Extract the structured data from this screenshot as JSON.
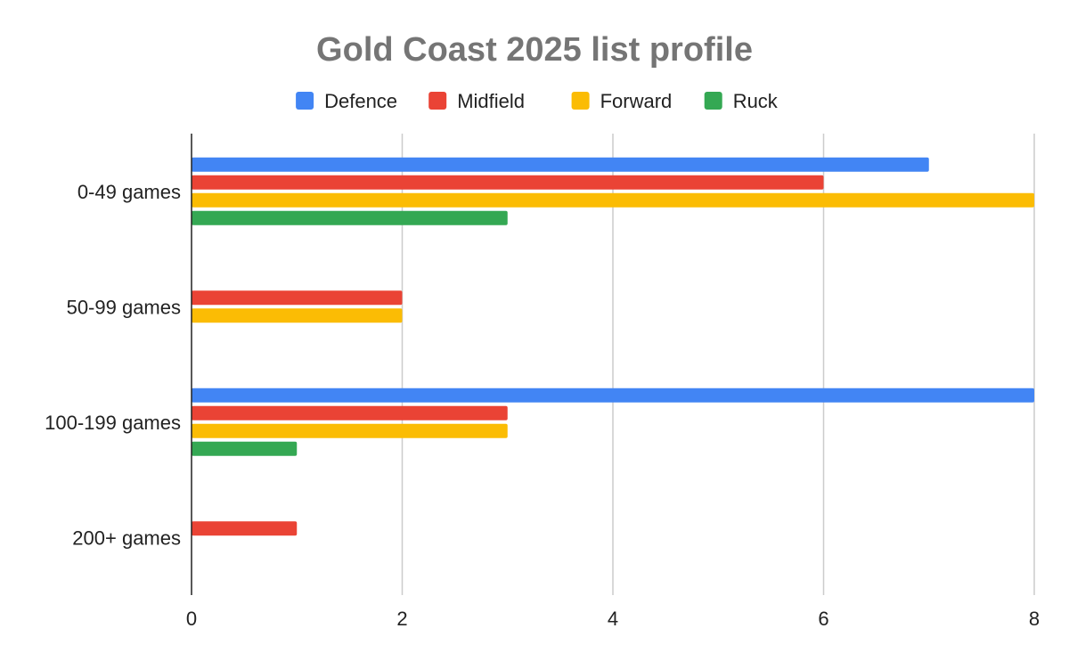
{
  "chart_data": {
    "type": "bar",
    "orientation": "horizontal",
    "title": "Gold Coast 2025 list profile",
    "categories": [
      "0-49 games",
      "50-99 games",
      "100-199 games",
      "200+ games"
    ],
    "series": [
      {
        "name": "Defence",
        "color": "#4285F4",
        "values": [
          7,
          0,
          8,
          0
        ]
      },
      {
        "name": "Midfield",
        "color": "#EA4335",
        "values": [
          6,
          2,
          3,
          1
        ]
      },
      {
        "name": "Forward",
        "color": "#FBBC04",
        "values": [
          8,
          2,
          3,
          0
        ]
      },
      {
        "name": "Ruck",
        "color": "#34A853",
        "values": [
          3,
          0,
          1,
          0
        ]
      }
    ],
    "x_ticks": [
      "0",
      "2",
      "4",
      "6",
      "8"
    ],
    "xlim": [
      0,
      8
    ],
    "xlabel": "",
    "ylabel": "",
    "grid": true,
    "legend_position": "top"
  }
}
